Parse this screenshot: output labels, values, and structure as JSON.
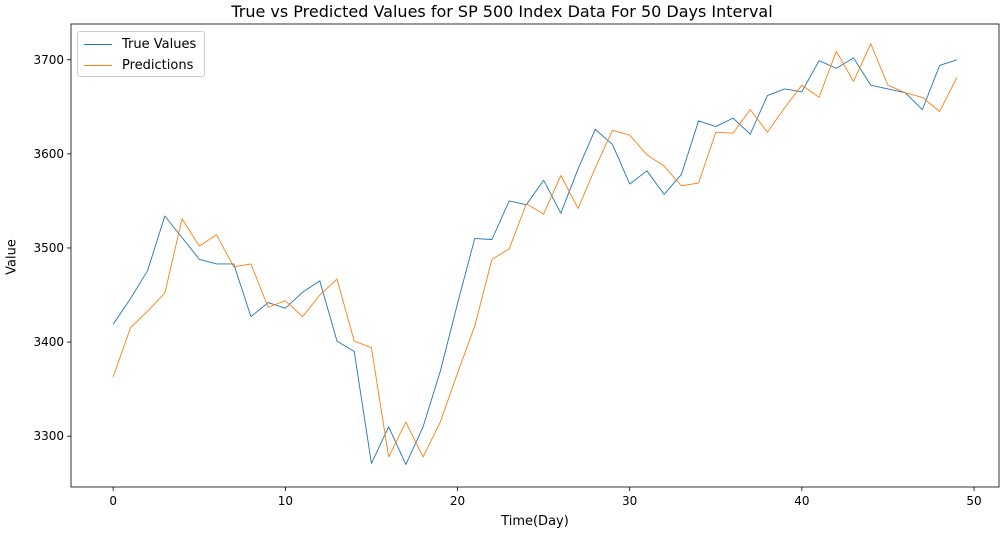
{
  "chart_data": {
    "type": "line",
    "title": "True vs Predicted Values for SP 500 Index Data For 50 Days Interval",
    "xlabel": "Time(Day)",
    "ylabel": "Value",
    "xlim": [
      -2.45,
      51.45
    ],
    "ylim": [
      3246,
      3738
    ],
    "xticks": [
      0,
      10,
      20,
      30,
      40,
      50
    ],
    "yticks": [
      3300,
      3400,
      3500,
      3600,
      3700
    ],
    "grid": false,
    "legend_position": "top-left",
    "x": [
      0,
      1,
      2,
      3,
      4,
      5,
      6,
      7,
      8,
      9,
      10,
      11,
      12,
      13,
      14,
      15,
      16,
      17,
      18,
      19,
      20,
      21,
      22,
      23,
      24,
      25,
      26,
      27,
      28,
      29,
      30,
      31,
      32,
      33,
      34,
      35,
      36,
      37,
      38,
      39,
      40,
      41,
      42,
      43,
      44,
      45,
      46,
      47,
      48,
      49
    ],
    "series": [
      {
        "name": "True Values",
        "color": "#1f77b4",
        "values": [
          3419,
          3446,
          3476,
          3534,
          3511,
          3488,
          3483,
          3483,
          3427,
          3442,
          3436,
          3453,
          3465,
          3401,
          3390,
          3271,
          3310,
          3270,
          3310,
          3369,
          3441,
          3510,
          3509,
          3550,
          3546,
          3572,
          3537,
          3584,
          3626,
          3610,
          3568,
          3582,
          3557,
          3578,
          3635,
          3629,
          3638,
          3621,
          3662,
          3669,
          3666,
          3699,
          3691,
          3702,
          3673,
          3669,
          3665,
          3647,
          3694,
          3700
        ]
      },
      {
        "name": "Predictions",
        "color": "#ff7f0e",
        "values": [
          3363,
          3415,
          3433,
          3452,
          3531,
          3502,
          3514,
          3480,
          3483,
          3437,
          3444,
          3427,
          3450,
          3467,
          3401,
          3394,
          3278,
          3315,
          3278,
          3315,
          3367,
          3417,
          3488,
          3499,
          3547,
          3536,
          3577,
          3542,
          3585,
          3625,
          3620,
          3599,
          3587,
          3566,
          3569,
          3623,
          3622,
          3647,
          3623,
          3649,
          3673,
          3660,
          3709,
          3677,
          3717,
          3673,
          3665,
          3660,
          3645,
          3681
        ]
      }
    ]
  }
}
